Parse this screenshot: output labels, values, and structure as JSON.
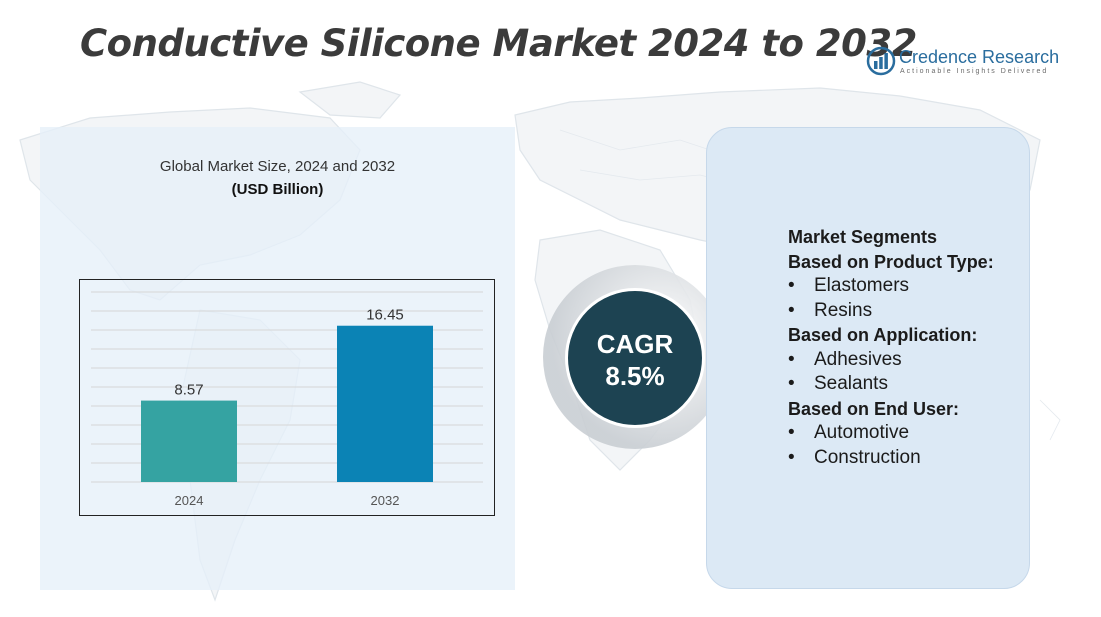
{
  "title": "Conductive Silicone Market 2024 to 2032",
  "logo": {
    "name": "Credence Research",
    "tagline": "Actionable Insights Delivered"
  },
  "colors": {
    "bar_2024": "#35a3a2",
    "bar_2032": "#0b83b5",
    "cagr_circle": "#1d4352",
    "right_panel": "#dce9f5",
    "left_panel": "#e5f0f9"
  },
  "chart_data": {
    "type": "bar",
    "title": "Global Market Size, 2024 and 2032",
    "subtitle": "(USD Billion)",
    "categories": [
      "2024",
      "2032"
    ],
    "values": [
      8.57,
      16.45
    ],
    "value_labels": [
      "8.57",
      "16.45"
    ],
    "ylim": [
      0,
      20
    ],
    "grid": true,
    "legend": "none"
  },
  "cagr": {
    "label": "CAGR",
    "value": "8.5%"
  },
  "segments": {
    "heading": "Market Segments",
    "groups": [
      {
        "title": "Based on Product Type:",
        "items": [
          "Elastomers",
          "Resins"
        ]
      },
      {
        "title": "Based on Application:",
        "items": [
          "Adhesives",
          "Sealants"
        ]
      },
      {
        "title": "Based on End User:",
        "items": [
          "Automotive",
          "Construction"
        ]
      }
    ]
  }
}
